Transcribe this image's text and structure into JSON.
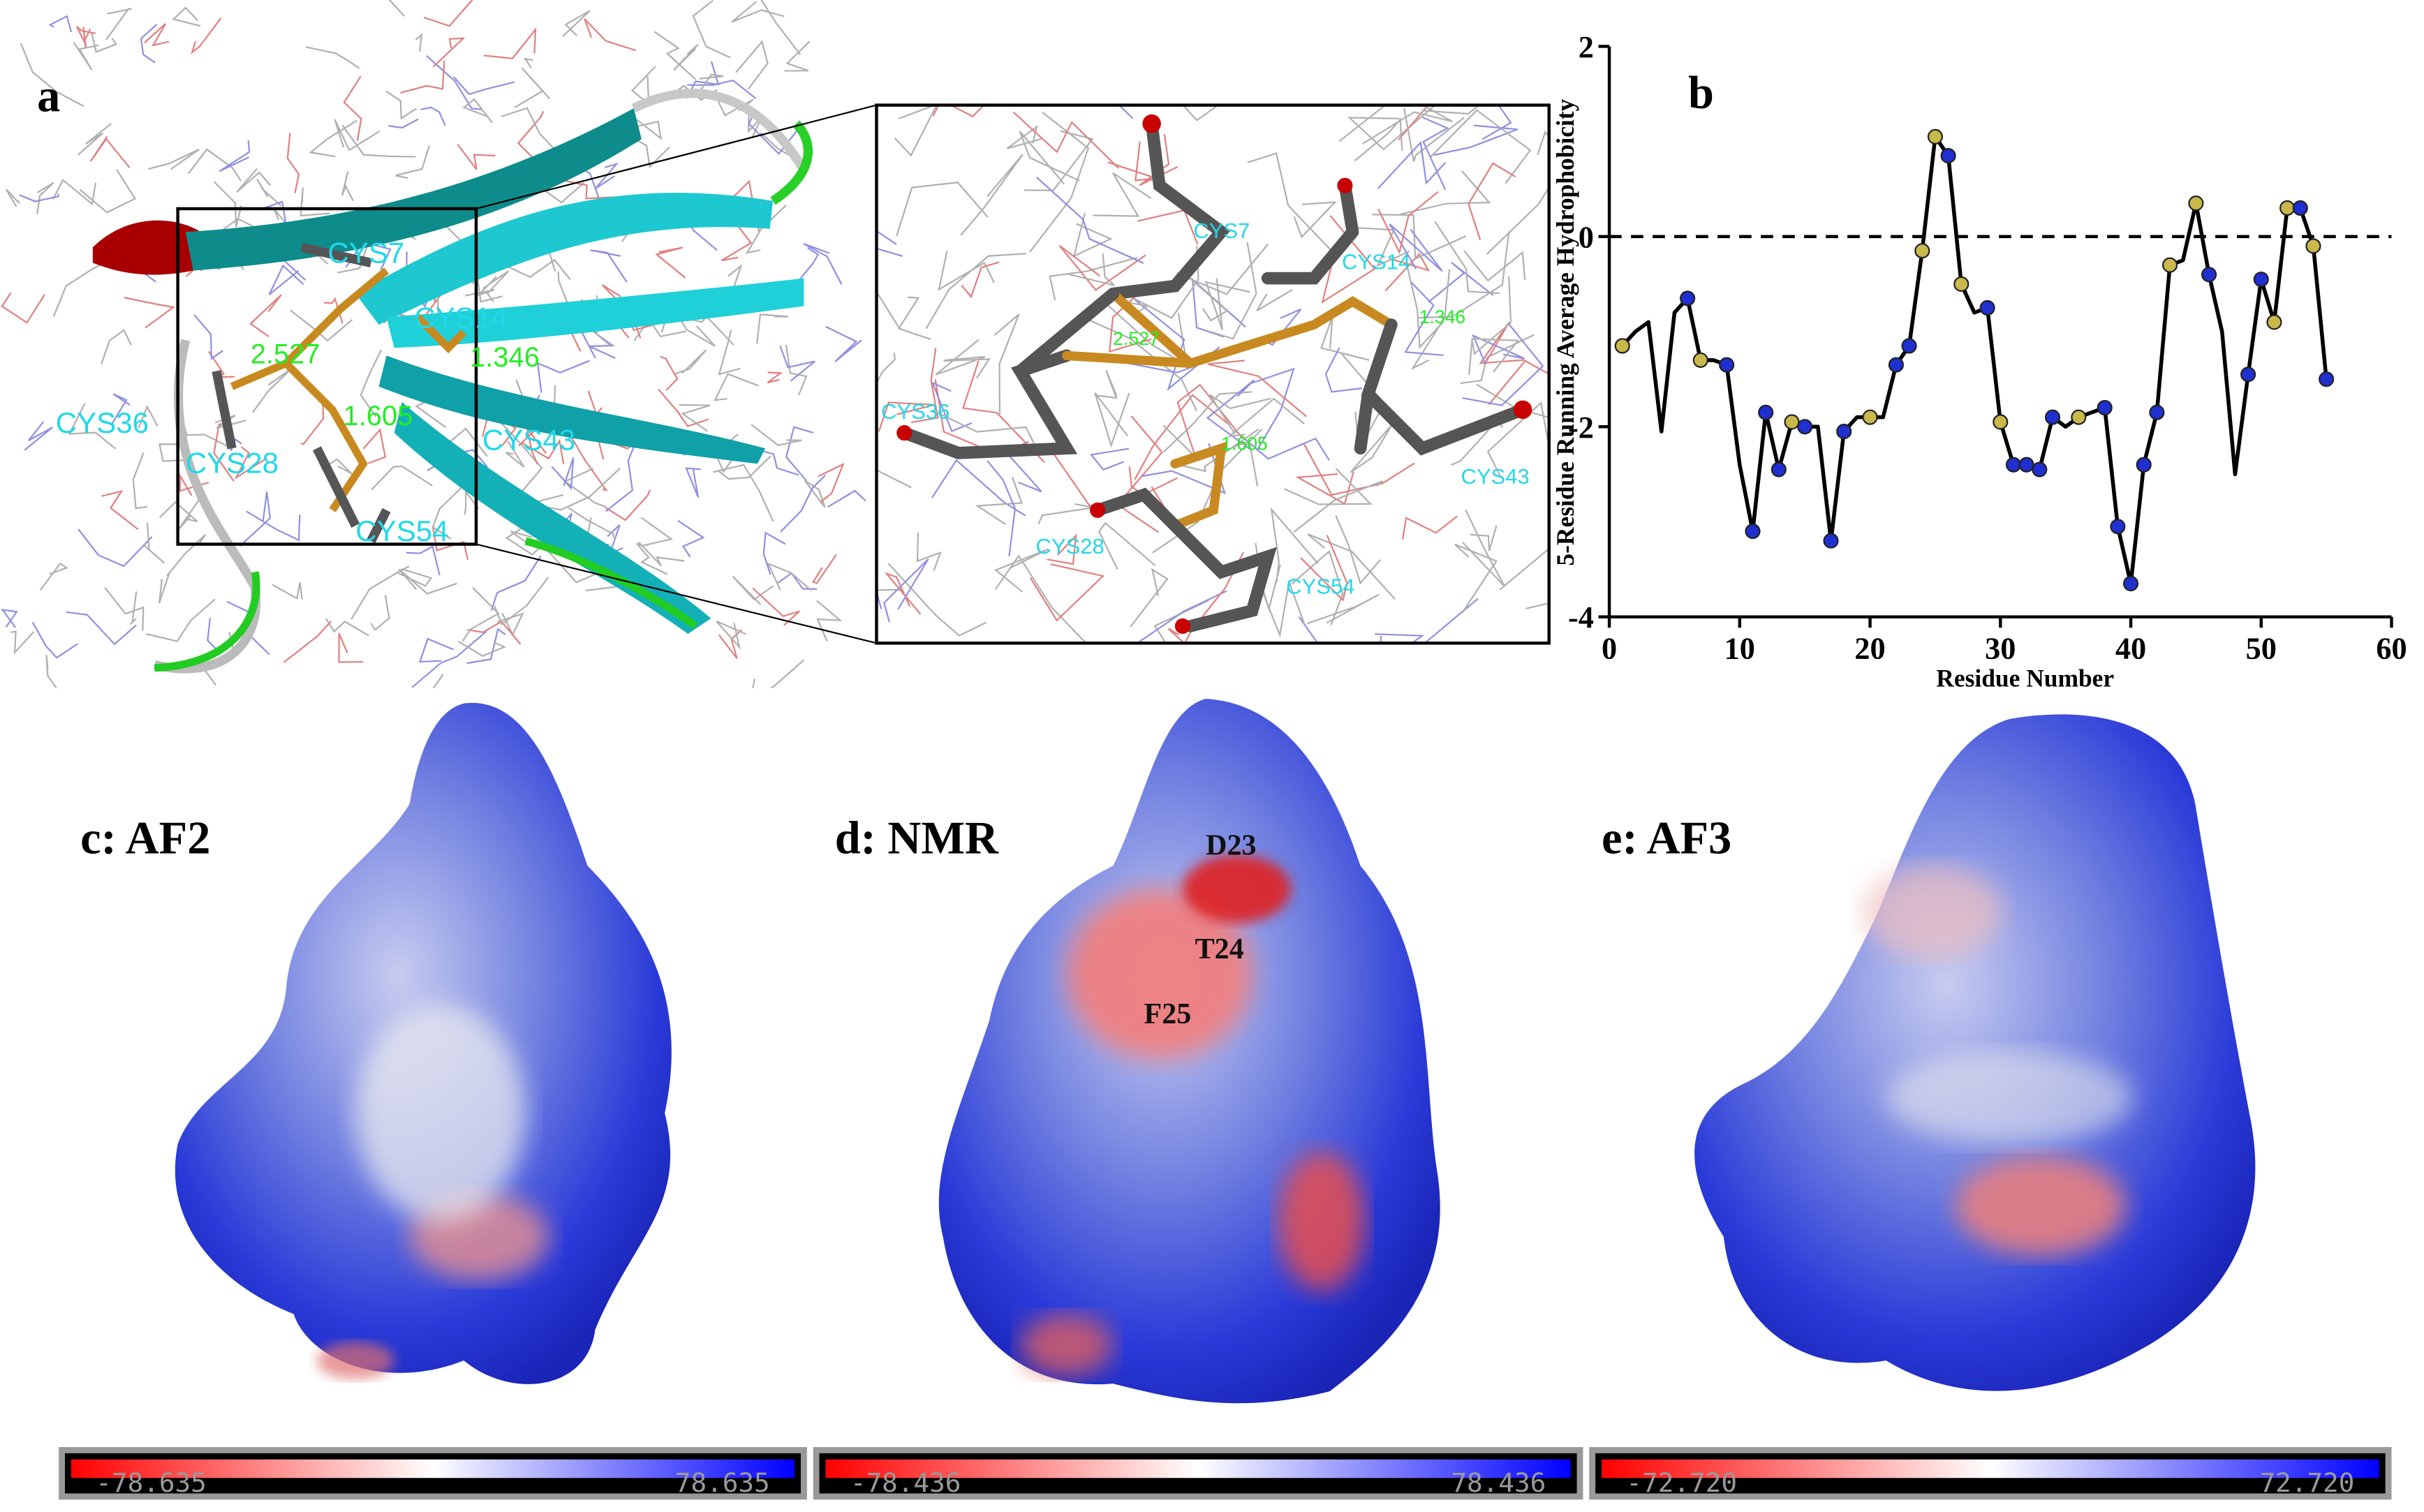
{
  "panel_a": {
    "label": "a",
    "residues": [
      "CYS7",
      "CYS14",
      "CYS36",
      "CYS28",
      "CYS43",
      "CYS54"
    ],
    "distances": [
      "2.527",
      "1.346",
      "1.605"
    ]
  },
  "chart_data": {
    "type": "line",
    "panel_label": "b",
    "xlabel": "Residue Number",
    "ylabel": "5-Residue Running Average Hydrophobicity",
    "x": [
      1,
      2,
      3,
      4,
      5,
      6,
      7,
      8,
      9,
      10,
      11,
      12,
      13,
      14,
      15,
      16,
      17,
      18,
      19,
      20,
      21,
      22,
      23,
      24,
      25,
      26,
      27,
      28,
      29,
      30,
      31,
      32,
      33,
      34,
      35,
      36,
      37,
      38,
      39,
      40,
      41,
      42,
      43,
      44,
      45,
      46,
      47,
      48,
      49,
      50,
      51,
      52,
      53,
      54,
      55
    ],
    "series": [
      {
        "color": "#000000",
        "values": [
          -1.15,
          -1.0,
          -0.9,
          -2.05,
          -0.8,
          -0.65,
          -1.3,
          -1.3,
          -1.35,
          -2.4,
          -3.1,
          -1.85,
          -2.45,
          -1.95,
          -2.0,
          -2.0,
          -3.2,
          -2.05,
          -1.9,
          -1.9,
          -1.9,
          -1.35,
          -1.15,
          -0.15,
          1.05,
          0.85,
          -0.5,
          -0.8,
          -0.75,
          -1.95,
          -2.4,
          -2.4,
          -2.45,
          -1.9,
          -2.0,
          -1.9,
          -1.85,
          -1.8,
          -3.05,
          -3.65,
          -2.4,
          -1.85,
          -0.3,
          -0.25,
          0.35,
          -0.4,
          -1.0,
          -2.5,
          -1.45,
          -0.45,
          -0.9,
          0.3,
          0.3,
          -0.1,
          -1.5
        ],
        "marker_colors": [
          "#c9b84a",
          null,
          null,
          null,
          null,
          "#1f2fd0",
          "#c9b84a",
          null,
          "#1f2fd0",
          null,
          "#1f2fd0",
          "#1f2fd0",
          "#1f2fd0",
          "#c9b84a",
          "#1f2fd0",
          null,
          "#1f2fd0",
          "#1f2fd0",
          null,
          "#c9b84a",
          null,
          "#1f2fd0",
          "#1f2fd0",
          "#c9b84a",
          "#c9b84a",
          "#1f2fd0",
          "#c9b84a",
          null,
          "#1f2fd0",
          "#c9b84a",
          "#1f2fd0",
          "#1f2fd0",
          "#1f2fd0",
          "#1f2fd0",
          null,
          "#c9b84a",
          null,
          "#1f2fd0",
          "#1f2fd0",
          "#1f2fd0",
          "#1f2fd0",
          "#1f2fd0",
          "#c9b84a",
          null,
          "#c9b84a",
          "#1f2fd0",
          null,
          null,
          "#1f2fd0",
          "#1f2fd0",
          "#c9b84a",
          "#c9b84a",
          "#1f2fd0",
          "#c9b84a",
          "#1f2fd0"
        ]
      }
    ],
    "xlim": [
      0,
      60
    ],
    "xticks": [
      0,
      10,
      20,
      30,
      40,
      50,
      60
    ],
    "ylim": [
      -4,
      2
    ],
    "yticks": [
      -4,
      -2,
      0,
      2
    ],
    "hline": 0
  },
  "surfaces": [
    {
      "title": "c: AF2",
      "scale_min": "-78.635",
      "scale_max": "78.635"
    },
    {
      "title": "d: NMR",
      "scale_min": "-78.436",
      "scale_max": "78.436"
    },
    {
      "title": "e: AF3",
      "scale_min": "-72.720",
      "scale_max": "72.720"
    }
  ],
  "nmr_residues": [
    "D23",
    "T24",
    "F25"
  ]
}
